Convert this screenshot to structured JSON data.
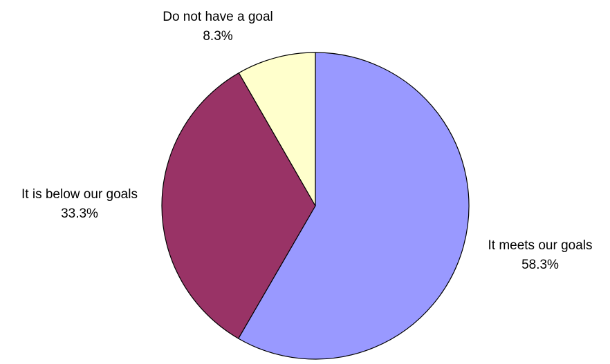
{
  "chart_data": {
    "type": "pie",
    "title": "",
    "slices": [
      {
        "label": "It meets our goals",
        "value": 58.3,
        "value_label": "58.3%",
        "color": "#9999FF"
      },
      {
        "label": "It is below our goals",
        "value": 33.3,
        "value_label": "33.3%",
        "color": "#993366"
      },
      {
        "label": "Do not have a goal",
        "value": 8.3,
        "value_label": "8.3%",
        "color": "#FFFFCC"
      }
    ],
    "start_angle_deg": 0,
    "direction": "clockwise",
    "legend": "none",
    "outline_color": "#000000"
  }
}
